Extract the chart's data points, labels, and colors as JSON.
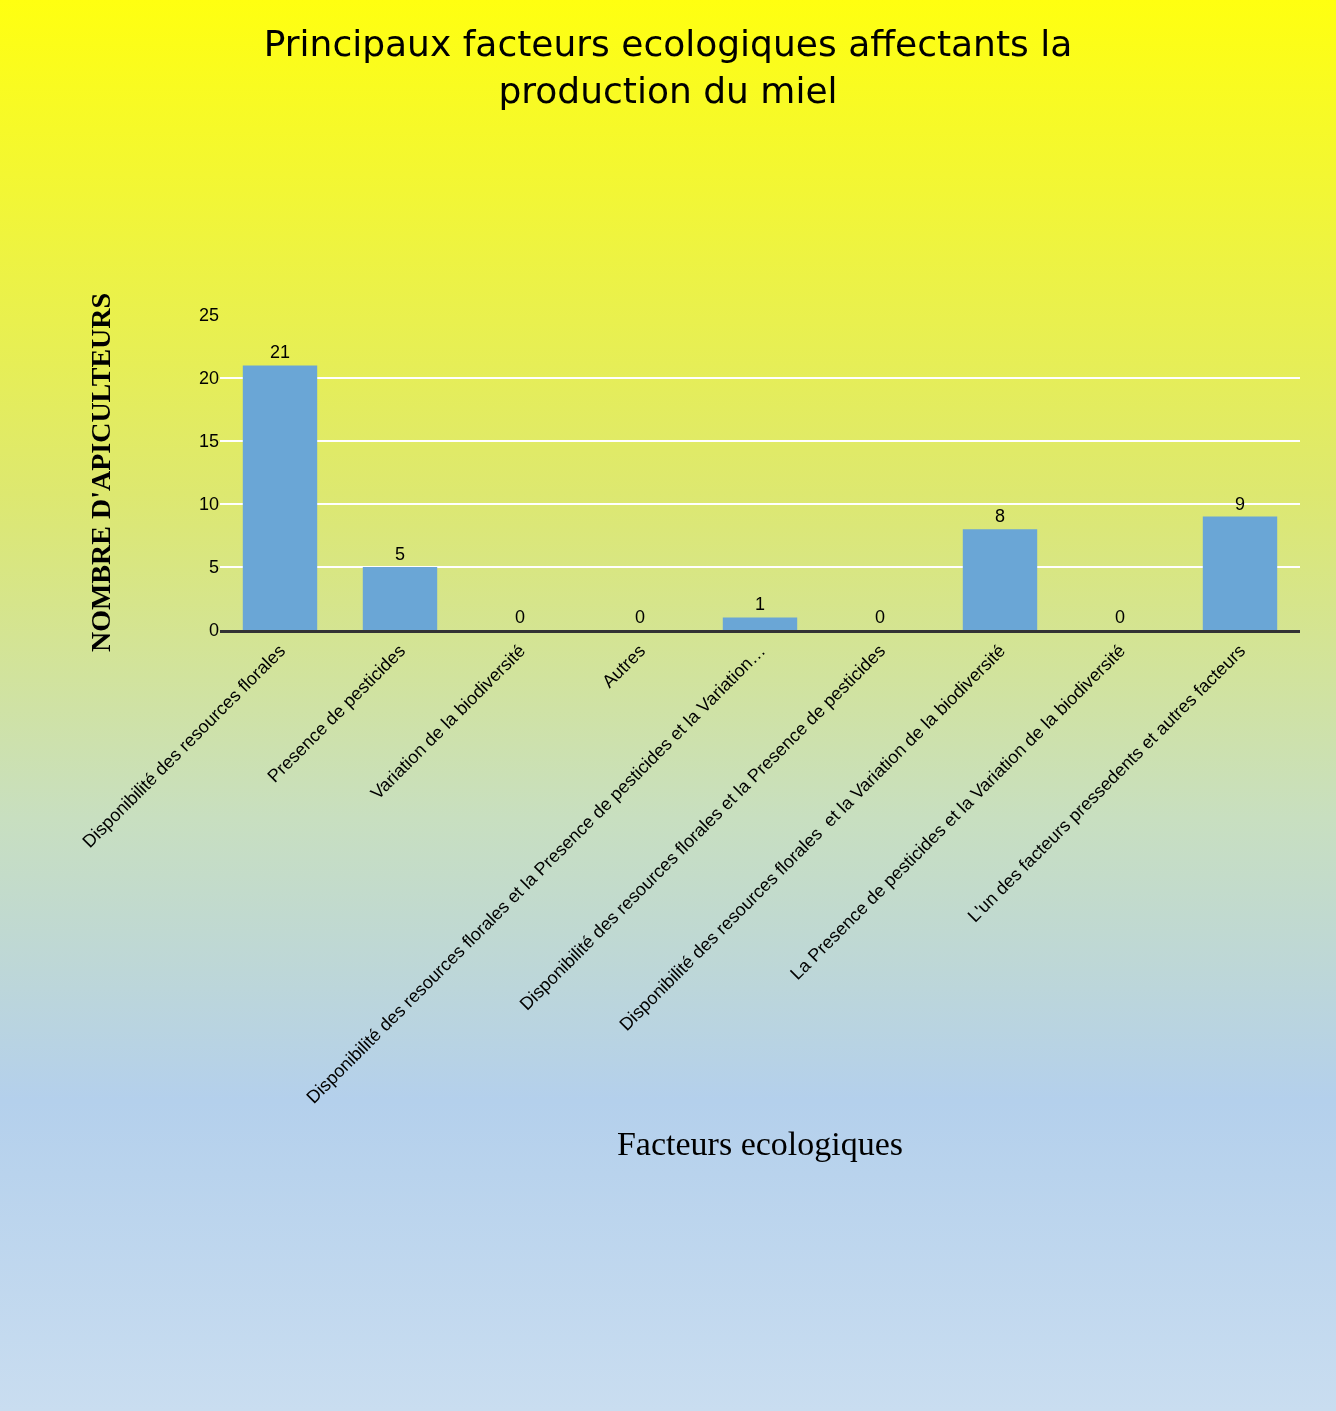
{
  "chart_data": {
    "type": "bar",
    "title": "Principaux facteurs ecologiques affectants la\nproduction du miel",
    "xlabel": "Facteurs ecologiques",
    "ylabel": "NOMBRE D'APICULTEURS",
    "categories": [
      "Disponibilité des resources florales",
      "Presence de pesticides",
      "Variation de la biodiversité",
      "Autres",
      "Disponibilité des resources florales et la Presence de pesticides et la Variation…",
      "Disponibilité des resources florales et la Presence de pesticides",
      "Disponibilité des resources florales  et la Variation de la biodiversité",
      "La Presence de pesticides et la Variation de la biodiversité",
      "L'un des facteurs pressedents et autres facteurs"
    ],
    "values": [
      21,
      5,
      0,
      0,
      1,
      0,
      8,
      0,
      9
    ],
    "color": "#6aa6d6",
    "ylim": [
      0,
      25
    ],
    "yticks": [
      0,
      5,
      10,
      15,
      20,
      25
    ],
    "grid": "y",
    "data_labels": true
  }
}
